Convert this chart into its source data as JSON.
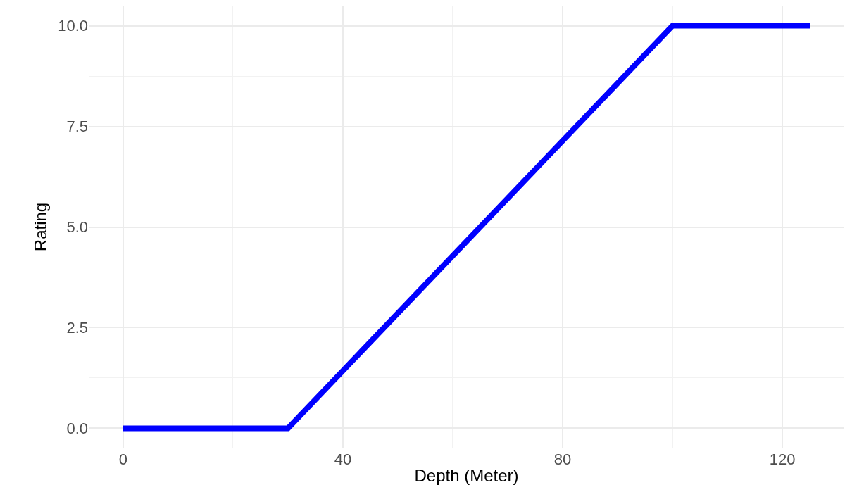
{
  "chart_data": {
    "type": "line",
    "xlabel": "Depth (Meter)",
    "ylabel": "Rating",
    "x": [
      0,
      30,
      100,
      125
    ],
    "series": [
      {
        "color": "#0000ff",
        "values": [
          0,
          0,
          10,
          10
        ]
      }
    ],
    "xlim": [
      -6.25,
      131.25
    ],
    "xticks": [
      0,
      40,
      80,
      120
    ],
    "ylim": [
      -0.5,
      10.5
    ],
    "yticks": [
      {
        "value": 0,
        "label": "0.0"
      },
      {
        "value": 2.5,
        "label": "2.5"
      },
      {
        "value": 5,
        "label": "5.0"
      },
      {
        "value": 7.5,
        "label": "7.5"
      },
      {
        "value": 10,
        "label": "10.0"
      }
    ],
    "grid": true,
    "marker": "none",
    "line_style": "solid"
  }
}
